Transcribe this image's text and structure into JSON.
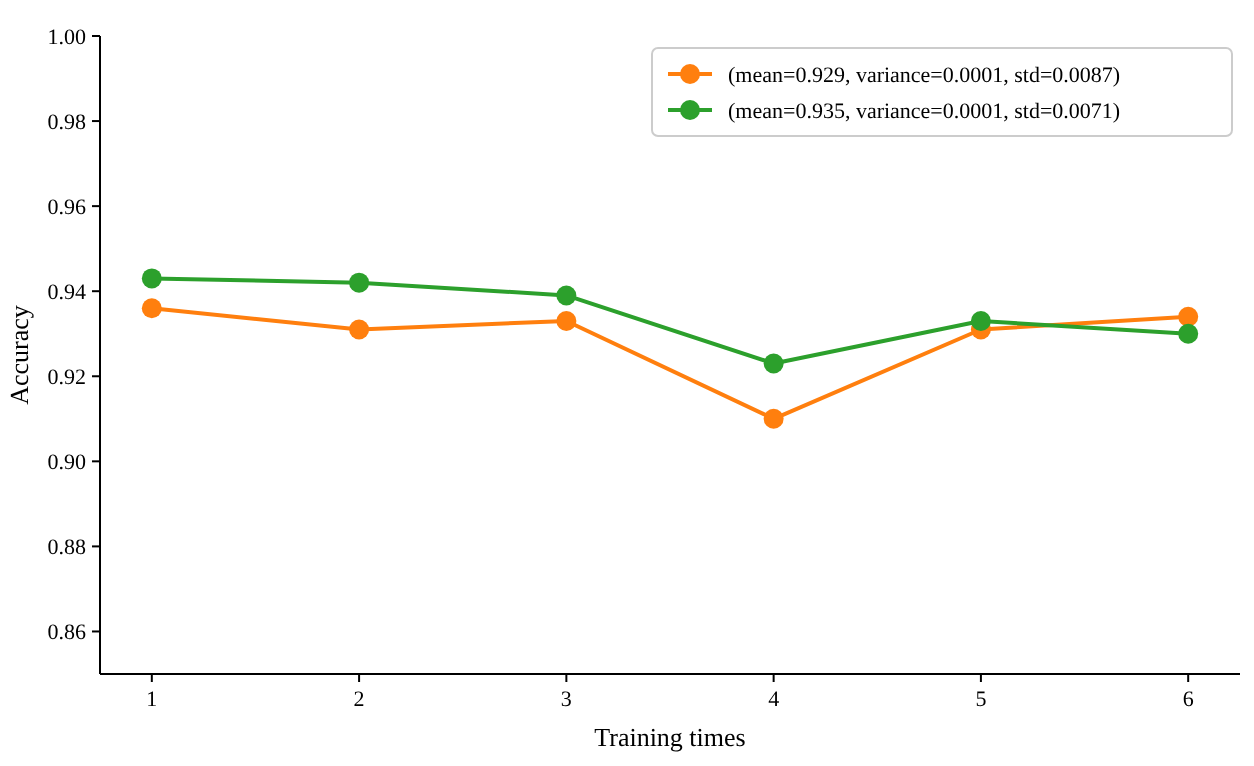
{
  "chart_data": {
    "type": "line",
    "xlabel": "Training times",
    "ylabel": "Accuracy",
    "x": [
      1,
      2,
      3,
      4,
      5,
      6
    ],
    "series": [
      {
        "name": "(mean=0.929, variance=0.0001, std=0.0087)",
        "color": "#ff7f0e",
        "values": [
          0.936,
          0.931,
          0.933,
          0.91,
          0.931,
          0.934
        ]
      },
      {
        "name": "(mean=0.935, variance=0.0001, std=0.0071)",
        "color": "#2ca02c",
        "values": [
          0.943,
          0.942,
          0.939,
          0.923,
          0.933,
          0.93
        ]
      }
    ],
    "xlim": [
      0.75,
      6.25
    ],
    "xticks": [
      1,
      2,
      3,
      4,
      5,
      6
    ],
    "ylim": [
      0.85,
      1.0
    ],
    "yticks": [
      {
        "value": 0.86,
        "label": "0.86"
      },
      {
        "value": 0.88,
        "label": "0.88"
      },
      {
        "value": 0.9,
        "label": "0.90"
      },
      {
        "value": 0.92,
        "label": "0.92"
      },
      {
        "value": 0.94,
        "label": "0.94"
      },
      {
        "value": 0.96,
        "label": "0.96"
      },
      {
        "value": 0.98,
        "label": "0.98"
      },
      {
        "value": 1.0,
        "label": "1.00"
      }
    ],
    "grid": false,
    "legend": "top right",
    "marker": "circle",
    "line_style": "solid"
  }
}
